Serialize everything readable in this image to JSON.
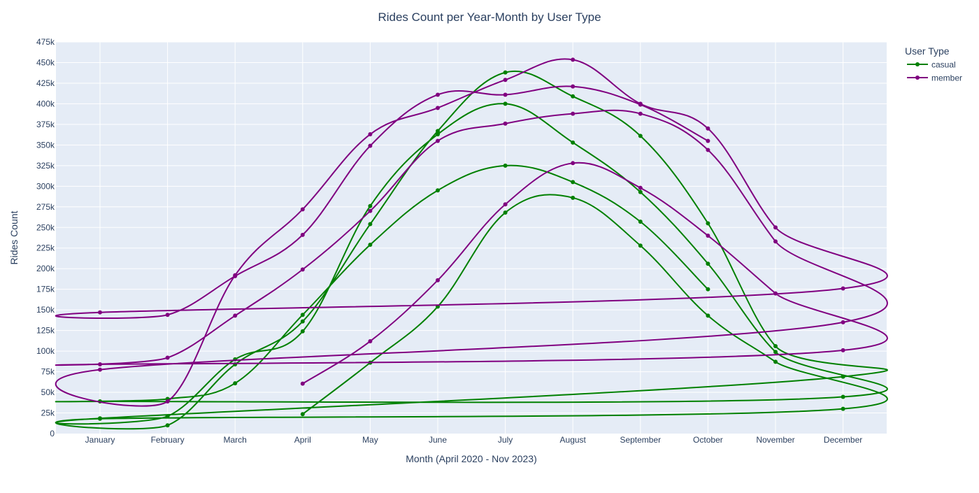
{
  "chart_data": {
    "type": "line",
    "title": "Rides Count per Year-Month by User Type",
    "xlabel": "Month (April 2020 - Nov 2023)",
    "ylabel": "Rides Count",
    "categories": [
      "January",
      "February",
      "March",
      "April",
      "May",
      "June",
      "July",
      "August",
      "September",
      "October",
      "November",
      "December"
    ],
    "y_ticks": [
      "0",
      "25k",
      "50k",
      "75k",
      "100k",
      "125k",
      "150k",
      "175k",
      "200k",
      "225k",
      "250k",
      "275k",
      "300k",
      "325k",
      "350k",
      "375k",
      "400k",
      "425k",
      "450k",
      "475k"
    ],
    "ylim": [
      0,
      475000
    ],
    "grid": true,
    "legend": {
      "title": "User Type",
      "placement": "top-right"
    },
    "colors": {
      "casual": "#008000",
      "member": "#800080",
      "plot_bg": "#e5ecf6",
      "grid": "#ffffff",
      "text": "#2a3f5f"
    },
    "series": [
      {
        "name": "casual",
        "values": [
          [
            null,
            null,
            null,
            23500,
            86000,
            154000,
            268000,
            286000,
            228000,
            143000,
            87000,
            30000
          ],
          [
            18000,
            10000,
            84000,
            136000,
            254000,
            367000,
            438000,
            409000,
            361000,
            255000,
            106000,
            69000
          ],
          [
            18500,
            21000,
            90000,
            124000,
            276000,
            363000,
            400000,
            353000,
            293000,
            206000,
            99000,
            44500
          ],
          [
            39000,
            42000,
            61000,
            144000,
            229000,
            295000,
            325000,
            305000,
            257000,
            175000,
            null,
            null
          ]
        ]
      },
      {
        "name": "member",
        "values": [
          [
            null,
            null,
            null,
            60500,
            112000,
            186000,
            278000,
            328000,
            298000,
            240000,
            170000,
            101000
          ],
          [
            84000,
            92000,
            143000,
            199000,
            270000,
            355000,
            376000,
            388000,
            388000,
            344000,
            233000,
            135000
          ],
          [
            77500,
            39000,
            192000,
            272000,
            363000,
            395000,
            429000,
            453500,
            400000,
            370000,
            250000,
            176000
          ],
          [
            147000,
            144000,
            191000,
            241000,
            349000,
            411000,
            411000,
            421000,
            399000,
            355000,
            null,
            null
          ]
        ]
      }
    ]
  }
}
